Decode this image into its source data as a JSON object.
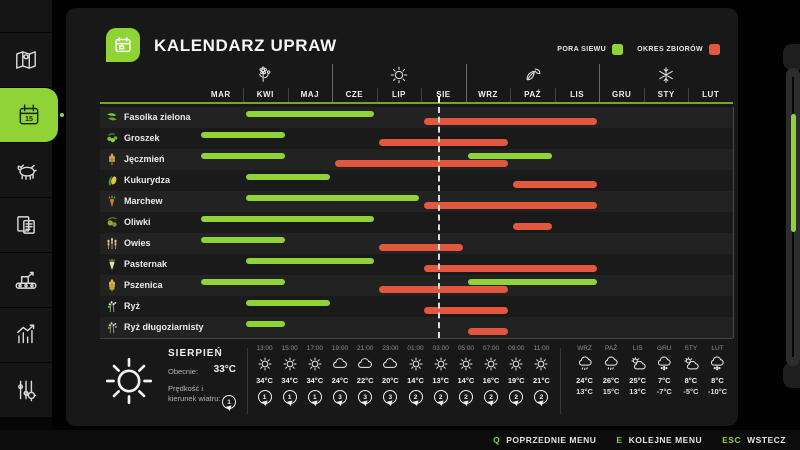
{
  "colors": {
    "accent": "#8fd336",
    "harvest": "#e2573e",
    "panel": "#181818"
  },
  "title": "KALENDARZ UPRAW",
  "legend": {
    "sow_label": "PORA SIEWU",
    "harvest_label": "OKRES ZBIORÓW",
    "sow_color": "#8fd336",
    "harvest_color": "#e2573e"
  },
  "header": {
    "season_icons": [
      "flower-icon",
      "sun-icon",
      "leaves-icon",
      "snowflake-icon"
    ]
  },
  "chart_data": {
    "type": "gantt-calendar",
    "categories": [
      "MAR",
      "KWI",
      "MAJ",
      "CZE",
      "LIP",
      "SIE",
      "WRZ",
      "PAŹ",
      "LIS",
      "GRU",
      "STY",
      "LUT"
    ],
    "series_legend": [
      "PORA SIEWU",
      "OKRES ZBIORÓW"
    ],
    "current_month_index": 5,
    "current_position_in_month": 0.38,
    "crops": [
      {
        "name": "Fasolka zielona",
        "icon": "green-bean-icon",
        "sow": [
          [
            1,
            3
          ]
        ],
        "harvest": [
          [
            5,
            8
          ]
        ]
      },
      {
        "name": "Groszek",
        "icon": "peas-icon",
        "sow": [
          [
            0,
            1
          ]
        ],
        "harvest": [
          [
            4,
            6
          ]
        ]
      },
      {
        "name": "Jęczmień",
        "icon": "barley-icon",
        "sow": [
          [
            0,
            1
          ],
          [
            6,
            7
          ]
        ],
        "harvest": [
          [
            3,
            6
          ]
        ]
      },
      {
        "name": "Kukurydza",
        "icon": "corn-icon",
        "sow": [
          [
            1,
            2
          ]
        ],
        "harvest": [
          [
            7,
            8
          ]
        ]
      },
      {
        "name": "Marchew",
        "icon": "carrot-icon",
        "sow": [
          [
            1,
            4
          ]
        ],
        "harvest": [
          [
            5,
            8
          ]
        ]
      },
      {
        "name": "Oliwki",
        "icon": "olives-icon",
        "sow": [
          [
            0,
            3
          ]
        ],
        "harvest": [
          [
            7,
            7
          ]
        ]
      },
      {
        "name": "Owies",
        "icon": "oats-icon",
        "sow": [
          [
            0,
            1
          ]
        ],
        "harvest": [
          [
            4,
            5
          ]
        ]
      },
      {
        "name": "Pasternak",
        "icon": "parsnip-icon",
        "sow": [
          [
            1,
            3
          ]
        ],
        "harvest": [
          [
            5,
            8
          ]
        ]
      },
      {
        "name": "Pszenica",
        "icon": "wheat-icon",
        "sow": [
          [
            0,
            1
          ],
          [
            6,
            8
          ]
        ],
        "harvest": [
          [
            4,
            6
          ]
        ]
      },
      {
        "name": "Ryż",
        "icon": "rice-icon",
        "sow": [
          [
            1,
            2
          ]
        ],
        "harvest": [
          [
            5,
            6
          ]
        ]
      },
      {
        "name": "Ryż długoziarnisty",
        "icon": "rice-long-icon",
        "sow": [
          [
            1,
            1
          ]
        ],
        "harvest": [
          [
            6,
            6
          ]
        ]
      }
    ]
  },
  "weather": {
    "month": "SIERPIEŃ",
    "current_label": "Obecnie:",
    "current_temp": "33°C",
    "wind_label": "Prędkość i kierunek wiatru:",
    "wind_value": "1",
    "hourly": [
      {
        "time": "13:00",
        "icon": "sun-icon",
        "temp": "34°C",
        "wind": "1"
      },
      {
        "time": "15:00",
        "icon": "sun-icon",
        "temp": "34°C",
        "wind": "1"
      },
      {
        "time": "17:00",
        "icon": "sun-icon",
        "temp": "34°C",
        "wind": "1"
      },
      {
        "time": "19:00",
        "icon": "cloud-icon",
        "temp": "24°C",
        "wind": "3"
      },
      {
        "time": "21:00",
        "icon": "cloud-icon",
        "temp": "22°C",
        "wind": "3"
      },
      {
        "time": "23:00",
        "icon": "cloud-icon",
        "temp": "20°C",
        "wind": "3"
      },
      {
        "time": "01:00",
        "icon": "sun-icon",
        "temp": "14°C",
        "wind": "2"
      },
      {
        "time": "03:00",
        "icon": "sun-icon",
        "temp": "13°C",
        "wind": "2"
      },
      {
        "time": "05:00",
        "icon": "sun-icon",
        "temp": "14°C",
        "wind": "2"
      },
      {
        "time": "07:00",
        "icon": "sun-icon",
        "temp": "16°C",
        "wind": "2"
      },
      {
        "time": "09:00",
        "icon": "sun-icon",
        "temp": "19°C",
        "wind": "2"
      },
      {
        "time": "11:00",
        "icon": "sun-icon",
        "temp": "21°C",
        "wind": "2"
      }
    ],
    "monthly": [
      {
        "month": "WRZ",
        "icon": "cloud-rain-icon",
        "high": "24°C",
        "low": "13°C"
      },
      {
        "month": "PAŹ",
        "icon": "cloud-rain-icon",
        "high": "26°C",
        "low": "15°C"
      },
      {
        "month": "LIS",
        "icon": "cloud-sun-icon",
        "high": "25°C",
        "low": "13°C"
      },
      {
        "month": "GRU",
        "icon": "cloud-snow-icon",
        "high": "7°C",
        "low": "-7°C"
      },
      {
        "month": "STY",
        "icon": "cloud-sun-icon",
        "high": "8°C",
        "low": "-5°C"
      },
      {
        "month": "LUT",
        "icon": "cloud-snow-icon",
        "high": "8°C",
        "low": "-10°C"
      }
    ]
  },
  "sidebar": {
    "items": [
      {
        "icon": "map-icon",
        "active": false
      },
      {
        "icon": "calendar-icon",
        "active": true
      },
      {
        "icon": "animals-icon",
        "active": false
      },
      {
        "icon": "contracts-icon",
        "active": false
      },
      {
        "icon": "production-icon",
        "active": false
      },
      {
        "icon": "statistics-icon",
        "active": false
      },
      {
        "icon": "settings-icon",
        "active": false
      }
    ]
  },
  "footer": {
    "items": [
      {
        "key": "Q",
        "label": "POPRZEDNIE MENU"
      },
      {
        "key": "E",
        "label": "KOLEJNE MENU"
      },
      {
        "key": "ESC",
        "label": "WSTECZ"
      }
    ]
  }
}
